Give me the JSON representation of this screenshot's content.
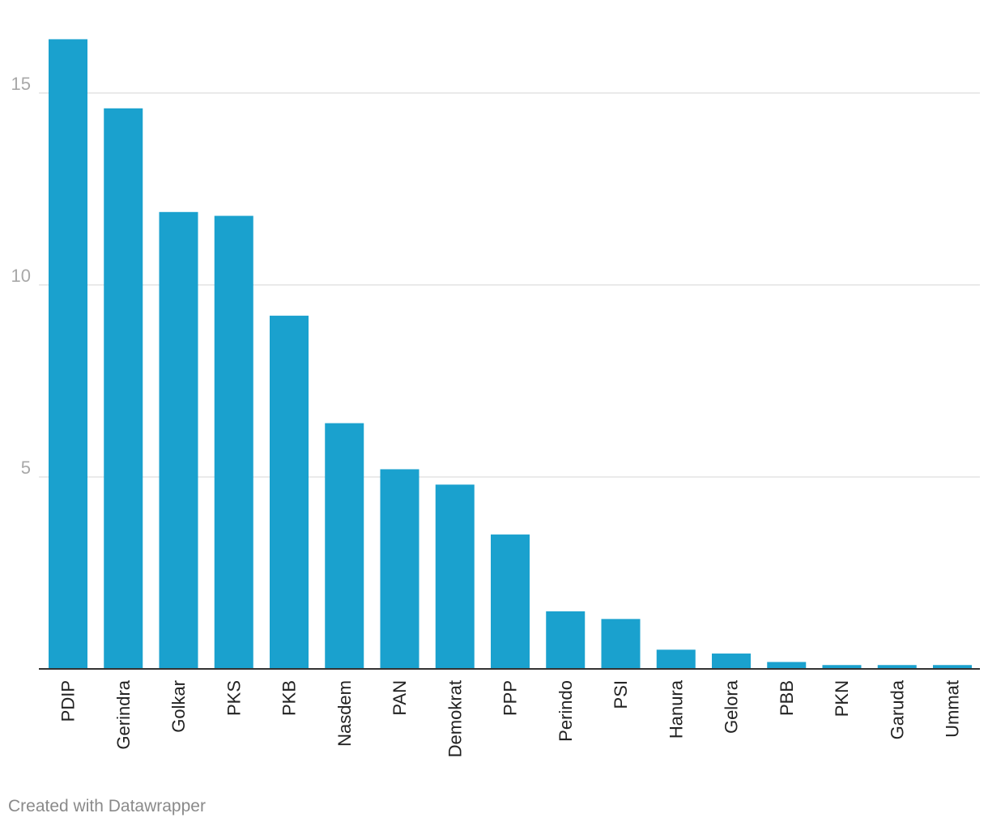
{
  "chart_data": {
    "type": "bar",
    "categories": [
      "PDIP",
      "Gerindra",
      "Golkar",
      "PKS",
      "PKB",
      "Nasdem",
      "PAN",
      "Demokrat",
      "PPP",
      "Perindo",
      "PSI",
      "Hanura",
      "Gelora",
      "PBB",
      "PKN",
      "Garuda",
      "Ummat"
    ],
    "values": [
      16.4,
      14.6,
      11.9,
      11.8,
      9.2,
      6.4,
      5.2,
      4.8,
      3.5,
      1.5,
      1.3,
      0.5,
      0.4,
      0.18,
      0.1,
      0.1,
      0.1
    ],
    "yticks": [
      "5",
      "10",
      "15"
    ],
    "ylim": [
      0,
      17
    ],
    "grid": true,
    "bar_color": "#1aa1ce",
    "title": "",
    "xlabel": "",
    "ylabel": ""
  },
  "footer": {
    "credit": "Created with Datawrapper"
  }
}
